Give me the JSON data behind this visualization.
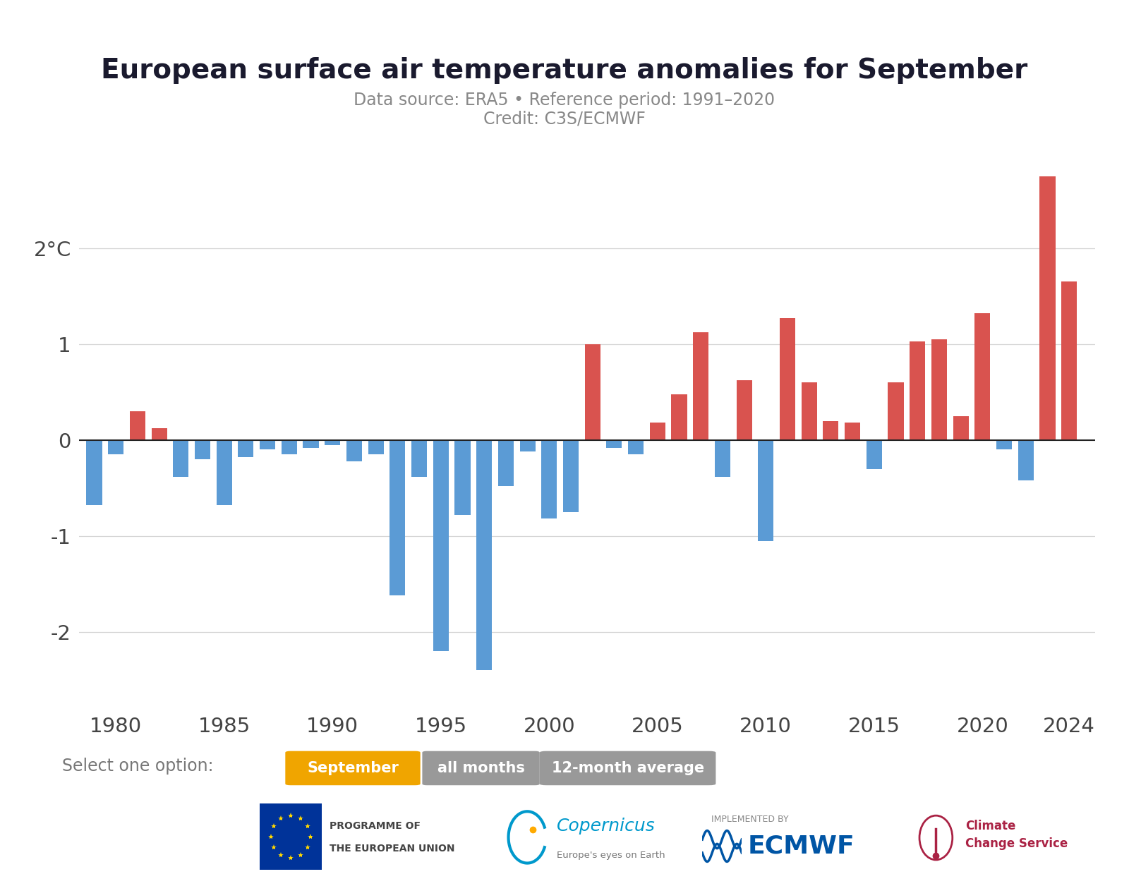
{
  "title": "European surface air temperature anomalies for September",
  "subtitle1": "Data source: ERA5 • Reference period: 1991–2020",
  "subtitle2": "Credit: C3S/ECMWF",
  "years": [
    1979,
    1980,
    1981,
    1982,
    1983,
    1984,
    1985,
    1986,
    1987,
    1988,
    1989,
    1990,
    1991,
    1992,
    1993,
    1994,
    1995,
    1996,
    1997,
    1998,
    1999,
    2000,
    2001,
    2002,
    2003,
    2004,
    2005,
    2006,
    2007,
    2008,
    2009,
    2010,
    2011,
    2012,
    2013,
    2014,
    2015,
    2016,
    2017,
    2018,
    2019,
    2020,
    2021,
    2022,
    2023,
    2024
  ],
  "values": [
    -0.68,
    -0.15,
    0.3,
    0.12,
    -0.38,
    -0.2,
    -0.68,
    -0.18,
    -0.1,
    -0.15,
    -0.08,
    -0.05,
    -0.22,
    -0.15,
    -1.62,
    -0.38,
    -2.2,
    -0.78,
    -2.4,
    -0.48,
    -0.12,
    -0.82,
    -0.75,
    1.0,
    -0.08,
    -0.15,
    0.18,
    0.48,
    1.12,
    -0.38,
    0.62,
    -1.05,
    1.27,
    0.6,
    0.2,
    0.18,
    -0.3,
    0.6,
    1.03,
    1.05,
    0.25,
    1.32,
    -0.1,
    -0.42,
    2.75,
    1.65
  ],
  "color_positive": "#d9534f",
  "color_negative": "#5b9bd5",
  "ylim": [
    -2.8,
    3.2
  ],
  "yticks": [
    -2,
    -1,
    0,
    1,
    2
  ],
  "background_color": "#ffffff",
  "grid_color": "#d4d4d4",
  "title_color": "#1a1a2e",
  "subtitle_color": "#888888",
  "axis_color": "#444444",
  "select_label": "Select one option:",
  "button_september": "September",
  "button_all_months": "all months",
  "button_12month": "12-month average",
  "button_september_color": "#f0a500",
  "button_others_color": "#999999",
  "xticks": [
    1980,
    1985,
    1990,
    1995,
    2000,
    2005,
    2010,
    2015,
    2020,
    2024
  ]
}
